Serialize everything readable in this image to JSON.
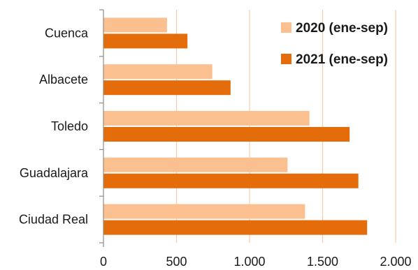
{
  "chart_data": {
    "type": "bar",
    "orientation": "horizontal",
    "title": "",
    "xlabel": "",
    "ylabel": "",
    "categories": [
      "Cuenca",
      "Albacete",
      "Toledo",
      "Guadalajara",
      "Ciudad Real"
    ],
    "series": [
      {
        "name": "2020 (ene-sep)",
        "color": "#fac090",
        "values": [
          435,
          745,
          1410,
          1260,
          1380
        ]
      },
      {
        "name": "2021 (ene-sep)",
        "color": "#e46c0a",
        "values": [
          575,
          870,
          1685,
          1745,
          1805
        ]
      }
    ],
    "xlim": [
      0,
      2000
    ],
    "xticks": [
      0,
      500,
      1000,
      1500,
      2000
    ],
    "xtick_labels": [
      "0",
      "500",
      "1.000",
      "1.500",
      "2.000"
    ],
    "grid": "vertical",
    "gridline_color": "#f8cbad",
    "legend_position": "top-right"
  }
}
